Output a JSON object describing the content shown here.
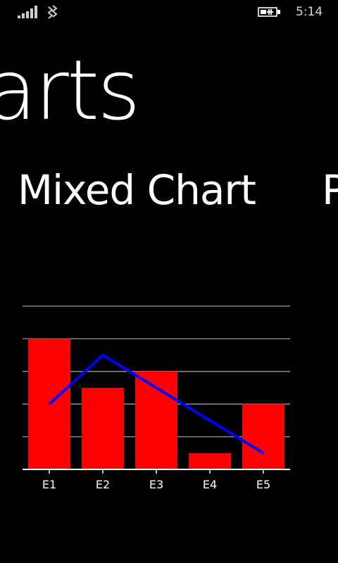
{
  "status": {
    "time": "5:14",
    "icons": [
      "signal-bars-icon",
      "wifi-icon",
      "battery-charging-icon"
    ]
  },
  "app": {
    "title": "arts"
  },
  "pivot": {
    "items": [
      {
        "label": "Mixed Chart",
        "active": true
      },
      {
        "label": "P",
        "active": false
      }
    ]
  },
  "colors": {
    "background": "#000000",
    "bars": "#ff0000",
    "line": "#0000ff",
    "gridlines": "#9a9a9a"
  },
  "chart_data": {
    "type": "bar",
    "categories": [
      "E1",
      "E2",
      "E3",
      "E4",
      "E5"
    ],
    "series": [
      {
        "kind": "bar",
        "values": [
          80,
          50,
          60,
          10,
          40
        ]
      },
      {
        "kind": "line",
        "values": [
          40,
          70,
          50,
          30,
          10
        ]
      }
    ],
    "ylim": [
      0,
      100
    ],
    "y_grid_step": 20,
    "grid": true,
    "legend": "none"
  }
}
